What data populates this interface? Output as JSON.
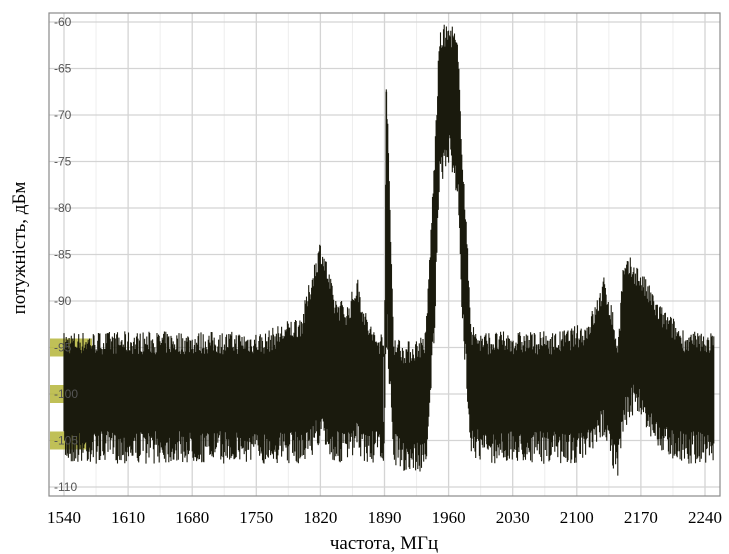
{
  "chart_data": {
    "type": "line",
    "title": "",
    "xlabel": "частота, МГц",
    "ylabel": "потужність, дБм",
    "xlim": [
      1540,
      2250
    ],
    "ylim": [
      -110,
      -60
    ],
    "x_ticks": [
      1540,
      1610,
      1680,
      1750,
      1820,
      1890,
      1960,
      2030,
      2100,
      2170,
      2240
    ],
    "x_tick_labels": [
      "1540",
      "1610",
      "1680",
      "1750",
      "1820",
      "1890",
      "1960",
      "2030",
      "2100",
      "2170",
      "2240"
    ],
    "y_ticks": [
      -60,
      -65,
      -70,
      -75,
      -80,
      -85,
      -90,
      -95,
      -100,
      -105,
      -110
    ],
    "y_tick_labels": [
      "-60",
      "-65",
      "-70",
      "-75",
      "-80",
      "-85",
      "-90",
      "-95",
      "-100",
      "-105",
      "-110"
    ],
    "highlighted_y_ticks": [
      -95,
      -100,
      -105
    ],
    "grid": true,
    "legend": "none",
    "colors": {
      "trace": "#1a1a0d",
      "grid": "#d4d4d4",
      "highlight": "#b5b53a",
      "frame": "#8a8a8a"
    },
    "series": [
      {
        "x": [
          1540,
          1600,
          1680,
          1760,
          1800,
          1812,
          1820,
          1826,
          1835,
          1850,
          1860,
          1870,
          1880,
          1890,
          1892,
          1900,
          1910,
          1920,
          1935,
          1945,
          1950,
          1955,
          1960,
          1965,
          1970,
          1975,
          1985,
          1995,
          2030,
          2080,
          2110,
          2120,
          2130,
          2138,
          2145,
          2150,
          2158,
          2168,
          2190,
          2220,
          2250
        ],
        "low": [
          -104,
          -104,
          -104,
          -104,
          -104,
          -103,
          -102,
          -103,
          -104,
          -104,
          -103,
          -104,
          -104,
          -104,
          -90,
          -104,
          -105,
          -105,
          -105,
          -90,
          -75,
          -73,
          -72,
          -73,
          -76,
          -90,
          -103,
          -104,
          -104,
          -104,
          -104,
          -103,
          -101,
          -104,
          -106,
          -101,
          -99,
          -99,
          -103,
          -104,
          -104
        ],
        "high": [
          -95,
          -95,
          -95,
          -95,
          -93,
          -88,
          -85,
          -87,
          -91,
          -92,
          -89,
          -93,
          -95,
          -95,
          -67,
          -95,
          -96,
          -96,
          -95,
          -75,
          -63,
          -62,
          -62,
          -62,
          -64,
          -75,
          -94,
          -95,
          -95,
          -95,
          -94,
          -92,
          -89,
          -92,
          -96,
          -88,
          -87,
          -88,
          -92,
          -95,
          -95
        ]
      }
    ]
  }
}
